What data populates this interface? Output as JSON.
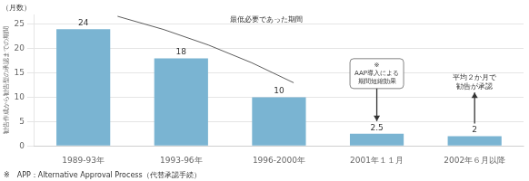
{
  "chart_data": {
    "type": "bar",
    "categories": [
      "1989-93年",
      "1993-96年",
      "1996-2000年",
      "2001年１１月",
      "2002年６月以降"
    ],
    "values": [
      24,
      18,
      10,
      2.5,
      2
    ],
    "color": "#7ab4d2",
    "ylabel": "勧告作成から勧告型の承認までの期間",
    "ylim": [
      0,
      27
    ],
    "yticks": [
      0,
      5,
      10,
      15,
      20,
      25
    ],
    "grid": true,
    "data_labels": true,
    "annotations": [
      "（月数）",
      "最低必要であった期間",
      [
        "※",
        "AAP導入による",
        "期間短縮効果"
      ],
      [
        "平均２か月で",
        "勧告が承認"
      ],
      "※　APP：Alternative Approval Process（代替承認手続）"
    ]
  }
}
